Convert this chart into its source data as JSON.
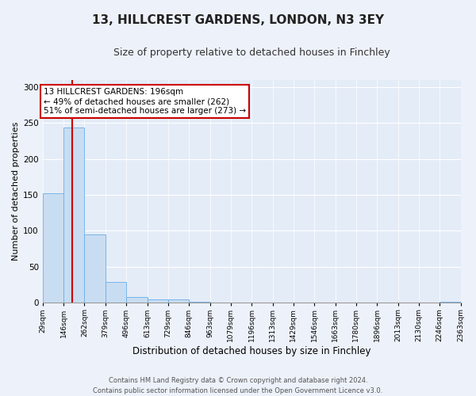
{
  "title": "13, HILLCREST GARDENS, LONDON, N3 3EY",
  "subtitle": "Size of property relative to detached houses in Finchley",
  "xlabel": "Distribution of detached houses by size in Finchley",
  "ylabel": "Number of detached properties",
  "bar_edges": [
    29,
    146,
    262,
    379,
    496,
    613,
    729,
    846,
    963,
    1079,
    1196,
    1313,
    1429,
    1546,
    1663,
    1780,
    1896,
    2013,
    2130,
    2246,
    2363
  ],
  "bar_heights": [
    152,
    243,
    95,
    29,
    8,
    5,
    5,
    1,
    0,
    0,
    0,
    0,
    0,
    0,
    0,
    0,
    0,
    0,
    0,
    1
  ],
  "bar_color": "#c9ddf2",
  "bar_edge_color": "#6aaee8",
  "property_line_x": 196,
  "property_line_color": "#cc0000",
  "annotation_title": "13 HILLCREST GARDENS: 196sqm",
  "annotation_line1": "← 49% of detached houses are smaller (262)",
  "annotation_line2": "51% of semi-detached houses are larger (273) →",
  "annotation_box_edgecolor": "#cc0000",
  "ylim": [
    0,
    310
  ],
  "yticks": [
    0,
    50,
    100,
    150,
    200,
    250,
    300
  ],
  "tick_labels": [
    "29sqm",
    "146sqm",
    "262sqm",
    "379sqm",
    "496sqm",
    "613sqm",
    "729sqm",
    "846sqm",
    "963sqm",
    "1079sqm",
    "1196sqm",
    "1313sqm",
    "1429sqm",
    "1546sqm",
    "1663sqm",
    "1780sqm",
    "1896sqm",
    "2013sqm",
    "2130sqm",
    "2246sqm",
    "2363sqm"
  ],
  "footer_line1": "Contains HM Land Registry data © Crown copyright and database right 2024.",
  "footer_line2": "Contains public sector information licensed under the Open Government Licence v3.0.",
  "background_color": "#edf2fa",
  "plot_bg_color": "#e4ecf7",
  "grid_color": "#ffffff",
  "title_fontsize": 11,
  "subtitle_fontsize": 9,
  "ylabel_fontsize": 8,
  "xlabel_fontsize": 8.5,
  "tick_fontsize": 6.5,
  "footer_fontsize": 6,
  "ann_fontsize": 7.5
}
